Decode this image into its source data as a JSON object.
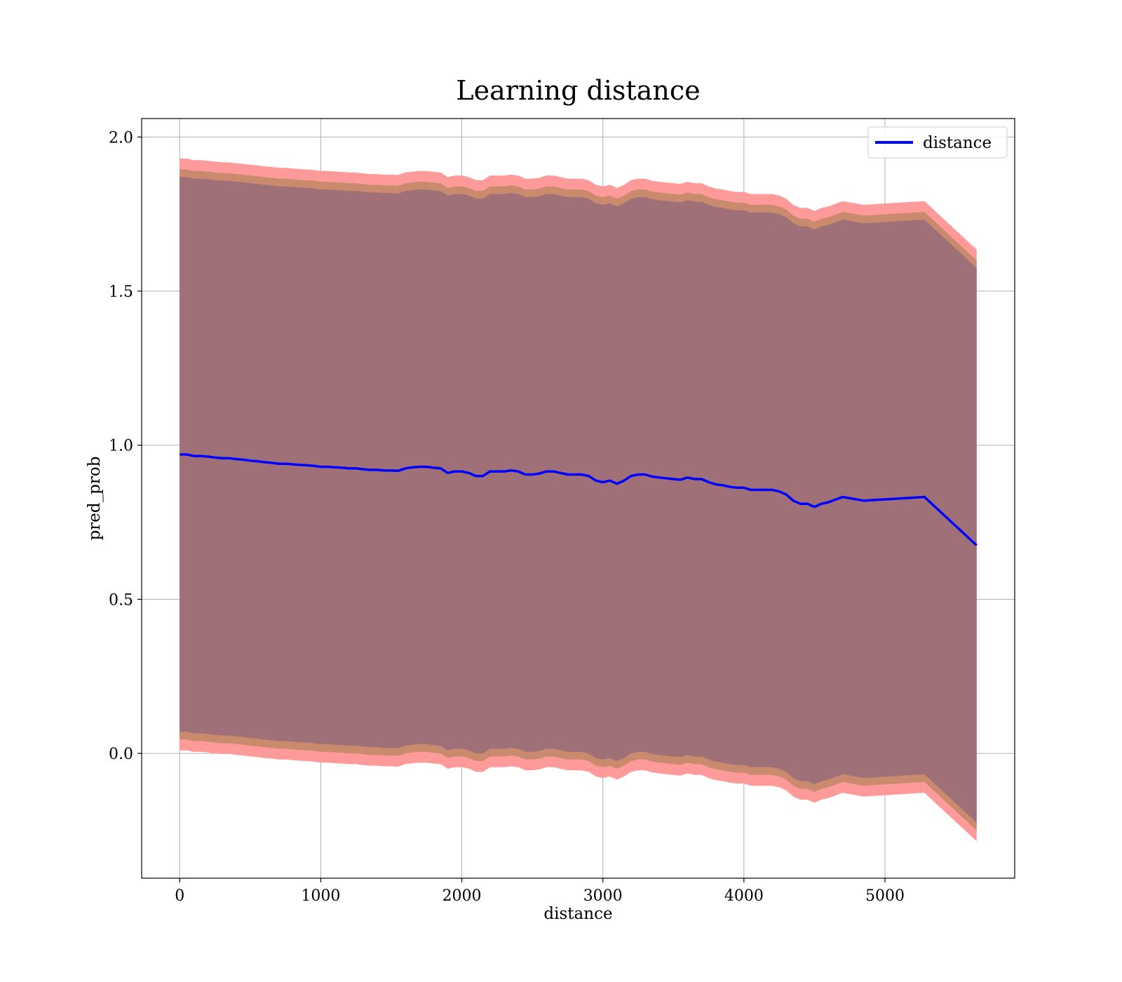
{
  "chart_data": {
    "type": "line",
    "title": "Learning distance",
    "xlabel": "distance",
    "ylabel": "pred_prob",
    "xlim": [
      -270,
      5920
    ],
    "ylim": [
      -0.405,
      2.06
    ],
    "xticks": [
      0,
      1000,
      2000,
      3000,
      4000,
      5000
    ],
    "xtick_labels": [
      "0",
      "1000",
      "2000",
      "3000",
      "4000",
      "5000"
    ],
    "yticks": [
      0.0,
      0.5,
      1.0,
      1.5,
      2.0
    ],
    "ytick_labels": [
      "0.0",
      "0.5",
      "1.0",
      "1.5",
      "2.0"
    ],
    "grid": true,
    "legend": {
      "placement": "top-right",
      "entries": [
        "distance"
      ]
    },
    "colors": {
      "line": "#0000ff",
      "band_outer": "#ff9a9a",
      "band_middle": "#c98a6e",
      "band_inner": "#a07078",
      "grid": "#b0b0b0"
    },
    "series": [
      {
        "name": "distance",
        "x": [
          0,
          50,
          100,
          150,
          200,
          250,
          300,
          350,
          400,
          450,
          500,
          550,
          600,
          650,
          700,
          750,
          800,
          850,
          900,
          950,
          1000,
          1050,
          1100,
          1150,
          1200,
          1250,
          1300,
          1350,
          1400,
          1450,
          1500,
          1550,
          1600,
          1650,
          1700,
          1750,
          1800,
          1850,
          1900,
          1950,
          2000,
          2050,
          2100,
          2150,
          2200,
          2250,
          2300,
          2350,
          2400,
          2450,
          2500,
          2550,
          2600,
          2650,
          2700,
          2750,
          2800,
          2850,
          2900,
          2950,
          3000,
          3050,
          3100,
          3150,
          3200,
          3250,
          3300,
          3350,
          3400,
          3500,
          3550,
          3600,
          3650,
          3700,
          3750,
          3800,
          3850,
          3900,
          3950,
          4000,
          4050,
          4100,
          4150,
          4200,
          4250,
          4300,
          4350,
          4400,
          4450,
          4500,
          4550,
          4600,
          4700,
          4850,
          5280,
          5650
        ],
        "y": [
          0.97,
          0.97,
          0.965,
          0.965,
          0.963,
          0.96,
          0.958,
          0.958,
          0.955,
          0.953,
          0.95,
          0.948,
          0.945,
          0.943,
          0.94,
          0.94,
          0.938,
          0.936,
          0.935,
          0.933,
          0.93,
          0.93,
          0.928,
          0.927,
          0.925,
          0.925,
          0.922,
          0.92,
          0.92,
          0.918,
          0.918,
          0.917,
          0.925,
          0.928,
          0.93,
          0.93,
          0.927,
          0.925,
          0.91,
          0.915,
          0.915,
          0.91,
          0.9,
          0.9,
          0.915,
          0.915,
          0.915,
          0.918,
          0.915,
          0.905,
          0.905,
          0.908,
          0.915,
          0.915,
          0.91,
          0.905,
          0.905,
          0.905,
          0.9,
          0.885,
          0.88,
          0.885,
          0.875,
          0.885,
          0.9,
          0.905,
          0.905,
          0.898,
          0.895,
          0.89,
          0.888,
          0.895,
          0.89,
          0.89,
          0.88,
          0.873,
          0.87,
          0.865,
          0.862,
          0.862,
          0.855,
          0.855,
          0.855,
          0.855,
          0.85,
          0.84,
          0.82,
          0.81,
          0.81,
          0.8,
          0.81,
          0.815,
          0.832,
          0.82,
          0.832,
          0.675
        ],
        "band_half_widths": [
          0.96,
          0.925,
          0.9
        ]
      }
    ]
  }
}
